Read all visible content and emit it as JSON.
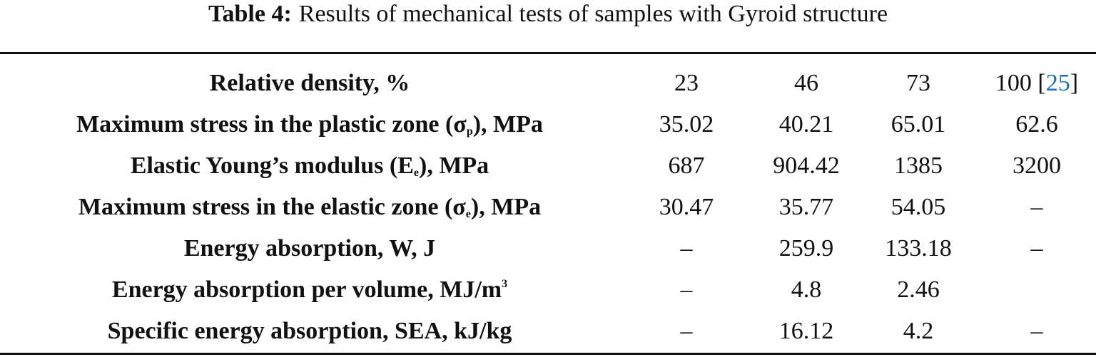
{
  "caption": {
    "label": "Table 4:",
    "text": "Results of mechanical tests of samples with Gyroid structure"
  },
  "table": {
    "header": {
      "label": [
        {
          "t": "Relative density, %"
        }
      ],
      "cells": [
        "23",
        "46",
        "73",
        [
          {
            "t": "100 ["
          },
          {
            "t": "25",
            "ref": true
          },
          {
            "t": "]"
          }
        ]
      ]
    },
    "rows": [
      {
        "label": [
          {
            "t": "Maximum stress in the plastic zone (σ"
          },
          {
            "t": "p",
            "sub": true
          },
          {
            "t": "), MPa"
          }
        ],
        "cells": [
          "35.02",
          "40.21",
          "65.01",
          "62.6"
        ]
      },
      {
        "label": [
          {
            "t": "Elastic Young’s modulus (E"
          },
          {
            "t": "e",
            "sub": true
          },
          {
            "t": "), MPa"
          }
        ],
        "cells": [
          "687",
          "904.42",
          "1385",
          "3200"
        ]
      },
      {
        "label": [
          {
            "t": "Maximum stress in the elastic zone (σ"
          },
          {
            "t": "e",
            "sub": true
          },
          {
            "t": "), MPa"
          }
        ],
        "cells": [
          "30.47",
          "35.77",
          "54.05",
          "–"
        ]
      },
      {
        "label": [
          {
            "t": "Energy absorption, W, J"
          }
        ],
        "cells": [
          "–",
          "259.9",
          "133.18",
          "–"
        ]
      },
      {
        "label": [
          {
            "t": "Energy absorption per volume, MJ/m"
          },
          {
            "t": "3",
            "sup": true
          }
        ],
        "cells": [
          "–",
          "4.8",
          "2.46",
          ""
        ]
      },
      {
        "label": [
          {
            "t": "Specific energy absorption, SEA, kJ/kg"
          }
        ],
        "cells": [
          "–",
          "16.12",
          "4.2",
          "–"
        ]
      }
    ]
  }
}
